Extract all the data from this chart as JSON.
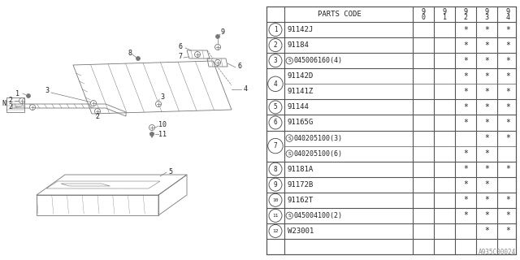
{
  "diagram_code": "A935C00024",
  "bg_color": "#ffffff",
  "lc": "#777777",
  "groups": [
    {
      "num": "1",
      "rows": [
        {
          "special": false,
          "code": "91142J",
          "cols": [
            "",
            "",
            "*",
            "*",
            "*"
          ]
        }
      ]
    },
    {
      "num": "2",
      "rows": [
        {
          "special": false,
          "code": "91184",
          "cols": [
            "",
            "",
            "*",
            "*",
            "*"
          ]
        }
      ]
    },
    {
      "num": "3",
      "rows": [
        {
          "special": true,
          "code": "045006160(4)",
          "cols": [
            "",
            "",
            "*",
            "*",
            "*"
          ]
        }
      ]
    },
    {
      "num": "4",
      "rows": [
        {
          "special": false,
          "code": "91141Z",
          "cols": [
            "",
            "",
            "*",
            "*",
            "*"
          ]
        },
        {
          "special": false,
          "code": "91142D",
          "cols": [
            "",
            "",
            "*",
            "*",
            "*"
          ]
        }
      ]
    },
    {
      "num": "5",
      "rows": [
        {
          "special": false,
          "code": "91144",
          "cols": [
            "",
            "",
            "*",
            "*",
            "*"
          ]
        }
      ]
    },
    {
      "num": "6",
      "rows": [
        {
          "special": false,
          "code": "91165G",
          "cols": [
            "",
            "",
            "*",
            "*",
            "*"
          ]
        }
      ]
    },
    {
      "num": "7",
      "rows": [
        {
          "special": true,
          "code": "040205100(6)",
          "cols": [
            "",
            "",
            "*",
            "*",
            ""
          ]
        },
        {
          "special": true,
          "code": "040205100(3)",
          "cols": [
            "",
            "",
            "",
            "*",
            "*"
          ]
        }
      ]
    },
    {
      "num": "8",
      "rows": [
        {
          "special": false,
          "code": "91181A",
          "cols": [
            "",
            "",
            "*",
            "*",
            "*"
          ]
        }
      ]
    },
    {
      "num": "9",
      "rows": [
        {
          "special": false,
          "code": "91172B",
          "cols": [
            "",
            "",
            "*",
            "*",
            ""
          ]
        }
      ]
    },
    {
      "num": "10",
      "rows": [
        {
          "special": false,
          "code": "91162T",
          "cols": [
            "",
            "",
            "*",
            "*",
            "*"
          ]
        }
      ]
    },
    {
      "num": "11",
      "rows": [
        {
          "special": true,
          "code": "045004100(2)",
          "cols": [
            "",
            "",
            "*",
            "*",
            "*"
          ]
        }
      ]
    },
    {
      "num": "12",
      "rows": [
        {
          "special": false,
          "code": "W23001",
          "cols": [
            "",
            "",
            "",
            "*",
            "*"
          ]
        }
      ]
    }
  ]
}
